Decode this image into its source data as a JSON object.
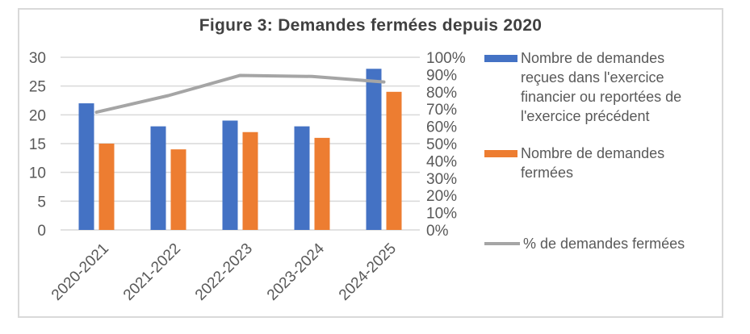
{
  "figure": {
    "title": "Figure 3: Demandes fermées depuis 2020"
  },
  "chart_data": {
    "type": "combo",
    "title": "Figure 3: Demandes fermées depuis 2020",
    "categories": [
      "2020-2021",
      "2021-2022",
      "2022-2023",
      "2023-2024",
      "2024-2025"
    ],
    "series": [
      {
        "name": "Nombre de demandes reçues dans l'exercice financier ou reportées de l'exercice précédent",
        "type": "bar",
        "axis": "left",
        "color_key": "blue",
        "values": [
          22,
          18,
          19,
          18,
          28
        ]
      },
      {
        "name": "Nombre de demandes fermées",
        "type": "bar",
        "axis": "left",
        "color_key": "orange",
        "values": [
          15,
          14,
          17,
          16,
          24
        ]
      },
      {
        "name": "%  de demandes fermées",
        "type": "line",
        "axis": "right",
        "color_key": "gray",
        "values": [
          68.2,
          77.8,
          89.5,
          88.9,
          85.7
        ]
      }
    ],
    "left_axis": {
      "min": 0,
      "max": 30,
      "step": 5,
      "tick_labels": [
        "0",
        "5",
        "10",
        "15",
        "20",
        "25",
        "30"
      ]
    },
    "right_axis": {
      "min": 0,
      "max": 100,
      "step": 10,
      "tick_labels": [
        "0%",
        "10%",
        "20%",
        "30%",
        "40%",
        "50%",
        "60%",
        "70%",
        "80%",
        "90%",
        "100%"
      ]
    },
    "grid": true,
    "legend_position": "right"
  },
  "legend": {
    "entries": [
      {
        "label": "Nombre de demandes reçues dans l'exercice financier ou reportées de l'exercice précédent",
        "swatch": "bar",
        "color_key": "blue"
      },
      {
        "label": "Nombre de demandes fermées",
        "swatch": "bar",
        "color_key": "orange"
      },
      {
        "label": "%  de demandes fermées",
        "swatch": "line",
        "color_key": "gray"
      }
    ]
  },
  "colors": {
    "blue": "#4472C4",
    "orange": "#ED7D31",
    "gray": "#A5A5A5",
    "grid": "#D9D9D9",
    "border": "#D9D9D9",
    "axis_text": "#595959",
    "title_text": "#404040"
  }
}
